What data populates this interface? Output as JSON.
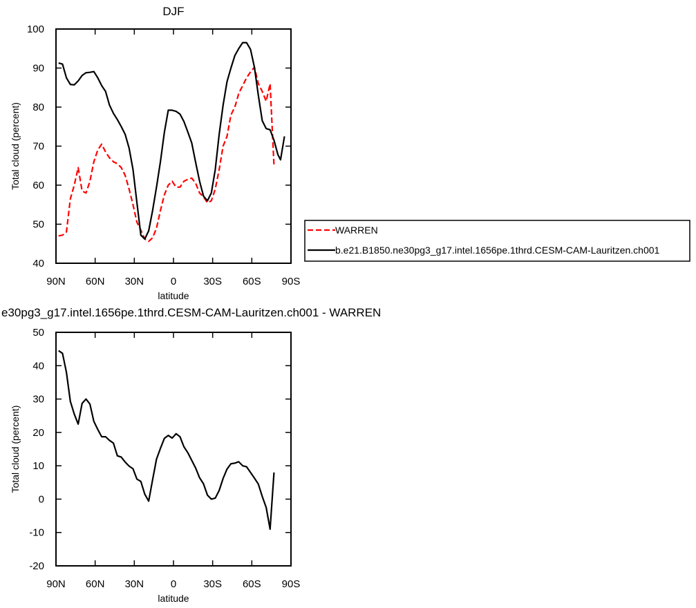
{
  "chart_data": [
    {
      "type": "line",
      "title": "DJF",
      "x_label": "latitude",
      "y_label": "Total cloud (percent)",
      "xlim": [
        90,
        -90
      ],
      "xticks": [
        {
          "value": 90,
          "label": "90N"
        },
        {
          "value": 60,
          "label": "60N"
        },
        {
          "value": 30,
          "label": "30N"
        },
        0,
        {
          "value": -30,
          "label": "30S"
        },
        {
          "value": -60,
          "label": "60S"
        },
        {
          "value": -90,
          "label": "90S"
        }
      ],
      "ylim": [
        40,
        100
      ],
      "yticks": [
        40,
        50,
        60,
        70,
        80,
        90,
        100
      ],
      "legend": "outside right",
      "series": [
        {
          "name": "WARREN",
          "color": "#ff0000",
          "dashed": true,
          "x": [
            88,
            85,
            82,
            79,
            76,
            73,
            70,
            67,
            64,
            61,
            58,
            55,
            52,
            49,
            46,
            43,
            40,
            37,
            34,
            31,
            28,
            25,
            22,
            19,
            16,
            13,
            10,
            7,
            4,
            1,
            -2,
            -5,
            -8,
            -11,
            -14,
            -17,
            -20,
            -23,
            -26,
            -29,
            -32,
            -35,
            -38,
            -41,
            -44,
            -47,
            -50,
            -53,
            -56,
            -59,
            -62,
            -65,
            -68,
            -71,
            -74,
            -77
          ],
          "values": [
            47,
            47.2,
            48,
            56.5,
            60,
            64.5,
            58.5,
            58,
            61,
            66,
            69,
            70.5,
            68.5,
            67,
            66,
            65.5,
            64.5,
            62.5,
            59,
            55,
            50.5,
            48.5,
            46.2,
            45.6,
            46.5,
            49,
            53.5,
            57.5,
            60,
            61,
            59.5,
            59.5,
            61,
            61.5,
            61.8,
            60.5,
            58,
            57,
            55.5,
            56,
            59,
            64,
            70,
            72.5,
            78,
            80,
            83.5,
            85.5,
            87.5,
            89,
            90.2,
            86,
            84,
            81.5,
            86,
            65
          ]
        },
        {
          "name": "b.e21.B1850.ne30pg3_g17.intel.1656pe.1thrd.CESM-CAM-Lauritzen.ch001",
          "color": "#000000",
          "dashed": false,
          "x": [
            88,
            85,
            82,
            79,
            76,
            73,
            70,
            67,
            64,
            61,
            58,
            55,
            52,
            49,
            46,
            43,
            40,
            37,
            34,
            31,
            28,
            25,
            22,
            19,
            16,
            13,
            10,
            7,
            4,
            1,
            -2,
            -5,
            -8,
            -11,
            -14,
            -17,
            -20,
            -23,
            -26,
            -29,
            -32,
            -35,
            -38,
            -41,
            -44,
            -47,
            -50,
            -53,
            -56,
            -59,
            -62,
            -65,
            -68,
            -71,
            -74,
            -77,
            -80,
            -82,
            -85
          ],
          "values": [
            91.3,
            91,
            87.5,
            85.8,
            85.7,
            86.7,
            88.1,
            88.8,
            88.9,
            89.1,
            87.5,
            85.5,
            84,
            80.5,
            78.4,
            76.8,
            75,
            73,
            69.5,
            64,
            55.5,
            47.2,
            46.2,
            48.3,
            53.5,
            59.5,
            66,
            73.5,
            79.2,
            79.2,
            78.9,
            78.2,
            76.3,
            73.6,
            70.8,
            65.8,
            61,
            57.2,
            56,
            58,
            64,
            73,
            80.5,
            86.5,
            90,
            93.2,
            95,
            96.5,
            96.5,
            94.8,
            90.2,
            83,
            76.5,
            74.5,
            74.2,
            71.5,
            67.8,
            66.5,
            72.5
          ]
        }
      ]
    },
    {
      "type": "line",
      "title": "e30pg3_g17.intel.1656pe.1thrd.CESM-CAM-Lauritzen.ch001 - WARREN",
      "x_label": "latitude",
      "y_label": "Total cloud (percent)",
      "xlim": [
        90,
        -90
      ],
      "xticks": [
        {
          "value": 90,
          "label": "90N"
        },
        {
          "value": 60,
          "label": "60N"
        },
        {
          "value": 30,
          "label": "30N"
        },
        0,
        {
          "value": -30,
          "label": "30S"
        },
        {
          "value": -60,
          "label": "60S"
        },
        {
          "value": -90,
          "label": "90S"
        }
      ],
      "ylim": [
        -20,
        50
      ],
      "yticks": [
        -20,
        -10,
        0,
        10,
        20,
        30,
        40,
        50
      ],
      "series": [
        {
          "color": "#000000",
          "dashed": false,
          "x": [
            88,
            85,
            82,
            79,
            76,
            73,
            70,
            67,
            64,
            61,
            58,
            55,
            52,
            49,
            46,
            43,
            40,
            37,
            34,
            31,
            28,
            25,
            22,
            19,
            16,
            13,
            10,
            7,
            4,
            1,
            -2,
            -5,
            -8,
            -11,
            -14,
            -17,
            -20,
            -23,
            -26,
            -29,
            -32,
            -35,
            -38,
            -41,
            -44,
            -47,
            -50,
            -53,
            -56,
            -59,
            -62,
            -65,
            -68,
            -71,
            -74,
            -77
          ],
          "values": [
            44.5,
            43.7,
            38,
            29.3,
            25.5,
            22.5,
            28.7,
            30,
            28.5,
            23.3,
            20.9,
            18.7,
            18.7,
            17.6,
            16.8,
            13,
            12.6,
            11.1,
            9.9,
            9.1,
            6,
            5.3,
            1.5,
            -0.6,
            5.8,
            12,
            15.2,
            18.2,
            19.1,
            18.3,
            19.6,
            18.7,
            15.7,
            13.9,
            11.6,
            9.3,
            6.4,
            4.6,
            1.2,
            0,
            0.3,
            2.6,
            6.2,
            9,
            10.6,
            10.8,
            11.2,
            10,
            9.7,
            8,
            6.3,
            4.5,
            0.8,
            -2.5,
            -9,
            8
          ]
        }
      ]
    }
  ]
}
